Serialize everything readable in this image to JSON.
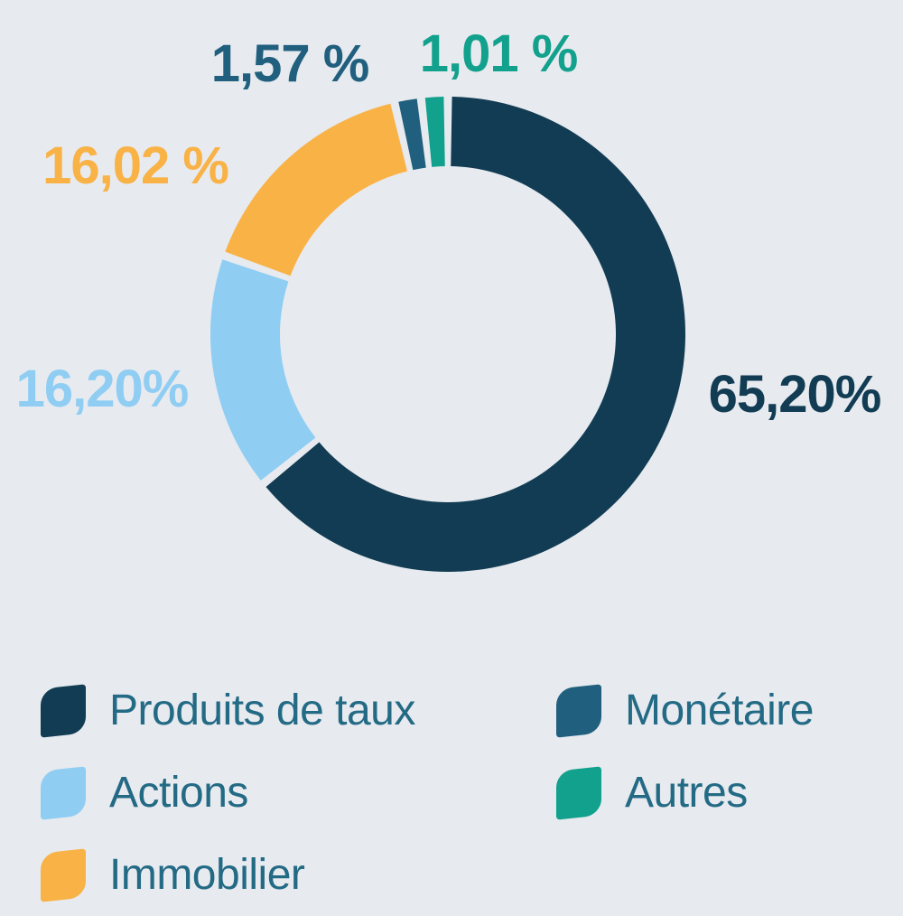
{
  "chart_data": {
    "type": "pie",
    "variant": "donut",
    "title": "",
    "unit": "%",
    "total": 100,
    "legend_position": "bottom",
    "background_color": "#E7EAEF",
    "legend_text_color": "#236A85",
    "slices": [
      {
        "name": "Produits de taux",
        "value": 65.2,
        "pct_label": "65,20%",
        "color": "#113C53"
      },
      {
        "name": "Actions",
        "value": 16.2,
        "pct_label": "16,20%",
        "color": "#8FCDF3"
      },
      {
        "name": "Immobilier",
        "value": 16.02,
        "pct_label": "16,02 %",
        "color": "#F9B245"
      },
      {
        "name": "Monétaire",
        "value": 1.57,
        "pct_label": "1,57 %",
        "color": "#20607E"
      },
      {
        "name": "Autres",
        "value": 1.01,
        "pct_label": "1,01 %",
        "color": "#12A18C"
      }
    ]
  }
}
